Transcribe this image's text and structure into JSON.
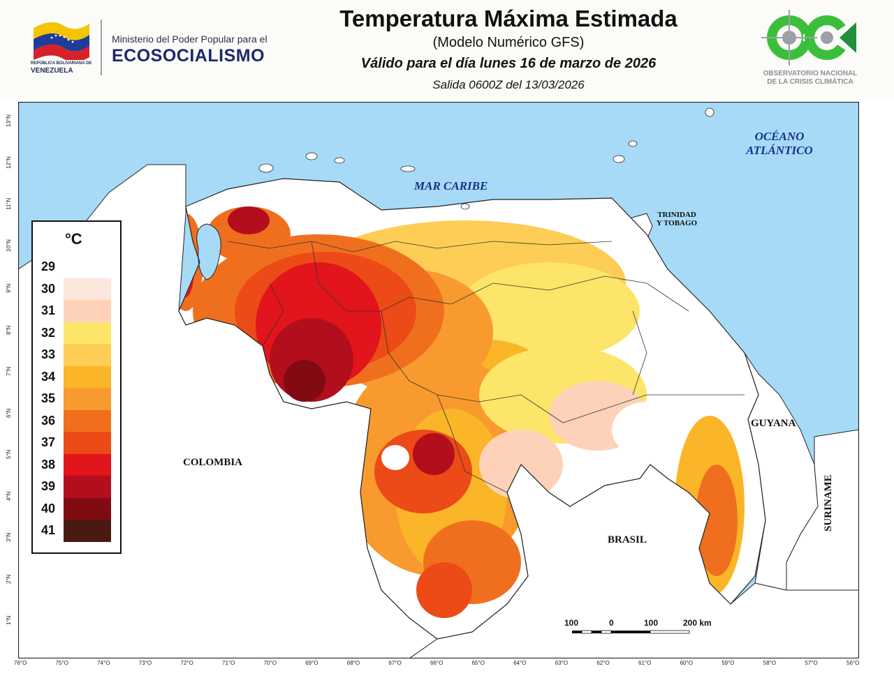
{
  "header": {
    "title": "Temperatura Máxima Estimada",
    "subtitle": "(Modelo Numérico GFS)",
    "valid_for": "Válido para el día lunes 16 de marzo de 2026",
    "run": "Salida 0600Z del 13/03/2026"
  },
  "logos": {
    "republic_small": "REPÚBLICA BOLIVARIANA DE",
    "republic": "VENEZUELA",
    "ministry_top": "Ministerio del Poder Popular para el",
    "ministry_main": "ECOSOCIALISMO",
    "observatory_line1": "OBSERVATORIO NACIONAL",
    "observatory_line2": "DE LA CRISIS CLIMÁTICA"
  },
  "legend": {
    "unit": "°C",
    "levels": [
      {
        "value": "29",
        "color": "#ffffff"
      },
      {
        "value": "30",
        "color": "#fde6dc"
      },
      {
        "value": "31",
        "color": "#fdd2b8"
      },
      {
        "value": "32",
        "color": "#fde56a"
      },
      {
        "value": "33",
        "color": "#fdcd55"
      },
      {
        "value": "34",
        "color": "#fbb528"
      },
      {
        "value": "35",
        "color": "#f99a2e"
      },
      {
        "value": "36",
        "color": "#f06f1e"
      },
      {
        "value": "37",
        "color": "#ec4a16"
      },
      {
        "value": "38",
        "color": "#e2141c"
      },
      {
        "value": "39",
        "color": "#b20e1c"
      },
      {
        "value": "40",
        "color": "#820a12"
      },
      {
        "value": "41",
        "color": "#4a1a12"
      }
    ]
  },
  "map_labels": {
    "ocean": [
      "OCÉANO",
      "ATLÁNTICO"
    ],
    "sea": "MAR CARIBE",
    "trinidad": [
      "TRINIDAD",
      "Y TOBAGO"
    ],
    "colombia": "COLOMBIA",
    "brasil": "BRASIL",
    "guyana": "GUYANA",
    "suriname": "SURINAME"
  },
  "scale_bar": {
    "labels": [
      "100",
      "0",
      "100",
      "200 km"
    ]
  },
  "axes": {
    "longitudes": [
      "76°O",
      "75°O",
      "74°O",
      "73°O",
      "72°O",
      "71°O",
      "70°O",
      "69°O",
      "68°O",
      "67°O",
      "66°O",
      "65°O",
      "64°O",
      "63°O",
      "62°O",
      "61°O",
      "60°O",
      "59°O",
      "58°O",
      "57°O",
      "56°O"
    ],
    "latitudes": [
      "13°N",
      "12°N",
      "11°N",
      "10°N",
      "9°N",
      "8°N",
      "7°N",
      "6°N",
      "5°N",
      "4°N",
      "3°N",
      "2°N",
      "1°N"
    ]
  },
  "colors": {
    "water": "#a6daf7",
    "land": "#ffffff",
    "border": "#222222"
  }
}
